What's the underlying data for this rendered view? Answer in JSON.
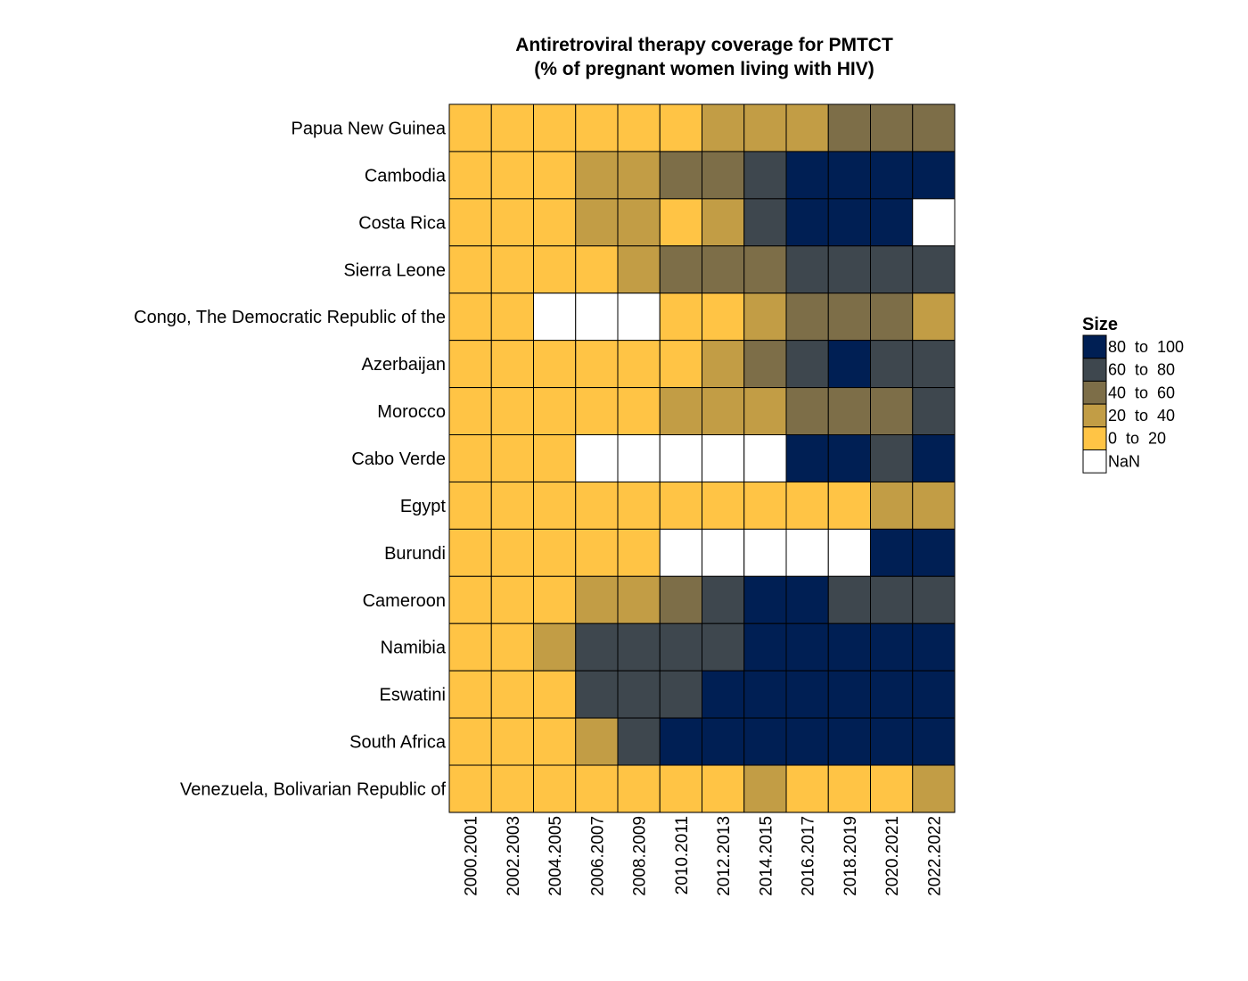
{
  "chart_data": {
    "type": "heatmap",
    "title": "Antiretroviral therapy coverage for PMTCT",
    "subtitle": "(% of pregnant women living with HIV)",
    "columns": [
      "2000.2001",
      "2002.2003",
      "2004.2005",
      "2006.2007",
      "2008.2009",
      "2010.2011",
      "2012.2013",
      "2014.2015",
      "2016.2017",
      "2018.2019",
      "2020.2021",
      "2022.2022"
    ],
    "rows": [
      "Papua New Guinea",
      "Cambodia",
      "Costa Rica",
      "Sierra Leone",
      "Congo, The Democratic Republic of the",
      "Azerbaijan",
      "Morocco",
      "Cabo Verde",
      "Egypt",
      "Burundi",
      "Cameroon",
      "Namibia",
      "Eswatini",
      "South Africa",
      "Venezuela, Bolivarian Republic of"
    ],
    "bin_index_note_values": "Each value is the legend bin index per cell: 0 = NaN, 1 = 0 to 20, 2 = 20 to 40, 3 = 40 to 60, 4 = 60 to 80, 5 = 80 to 100",
    "values": [
      [
        1,
        1,
        1,
        1,
        1,
        1,
        2,
        2,
        2,
        3,
        3,
        3
      ],
      [
        1,
        1,
        1,
        2,
        2,
        3,
        3,
        4,
        5,
        5,
        5,
        5
      ],
      [
        1,
        1,
        1,
        2,
        2,
        1,
        2,
        4,
        5,
        5,
        5,
        0
      ],
      [
        1,
        1,
        1,
        1,
        2,
        3,
        3,
        3,
        4,
        4,
        4,
        4
      ],
      [
        1,
        1,
        0,
        0,
        0,
        1,
        1,
        2,
        3,
        3,
        3,
        2
      ],
      [
        1,
        1,
        1,
        1,
        1,
        1,
        2,
        3,
        4,
        5,
        4,
        4
      ],
      [
        1,
        1,
        1,
        1,
        1,
        2,
        2,
        2,
        3,
        3,
        3,
        4
      ],
      [
        1,
        1,
        1,
        0,
        0,
        0,
        0,
        0,
        5,
        5,
        4,
        5
      ],
      [
        1,
        1,
        1,
        1,
        1,
        1,
        1,
        1,
        1,
        1,
        2,
        2
      ],
      [
        1,
        1,
        1,
        1,
        1,
        0,
        0,
        0,
        0,
        0,
        5,
        5
      ],
      [
        1,
        1,
        1,
        2,
        2,
        3,
        4,
        5,
        5,
        4,
        4,
        4
      ],
      [
        1,
        1,
        2,
        4,
        4,
        4,
        4,
        5,
        5,
        5,
        5,
        5
      ],
      [
        1,
        1,
        1,
        4,
        4,
        4,
        5,
        5,
        5,
        5,
        5,
        5
      ],
      [
        1,
        1,
        1,
        2,
        4,
        5,
        5,
        5,
        5,
        5,
        5,
        5
      ],
      [
        1,
        1,
        1,
        1,
        1,
        1,
        1,
        2,
        1,
        1,
        1,
        2
      ]
    ],
    "legend": {
      "title": "Size",
      "placement": "right",
      "items": [
        {
          "label": "80  to  100",
          "color": "#001f54"
        },
        {
          "label": "60  to  80",
          "color": "#3e474e"
        },
        {
          "label": "40  to  60",
          "color": "#7d6e48"
        },
        {
          "label": "20  to  40",
          "color": "#c29d45"
        },
        {
          "label": "0  to  20",
          "color": "#ffc445"
        },
        {
          "label": "NaN",
          "color": "#ffffff"
        }
      ]
    },
    "bin_colors": [
      "#ffffff",
      "#ffc445",
      "#c29d45",
      "#7d6e48",
      "#3e474e",
      "#001f54"
    ]
  }
}
